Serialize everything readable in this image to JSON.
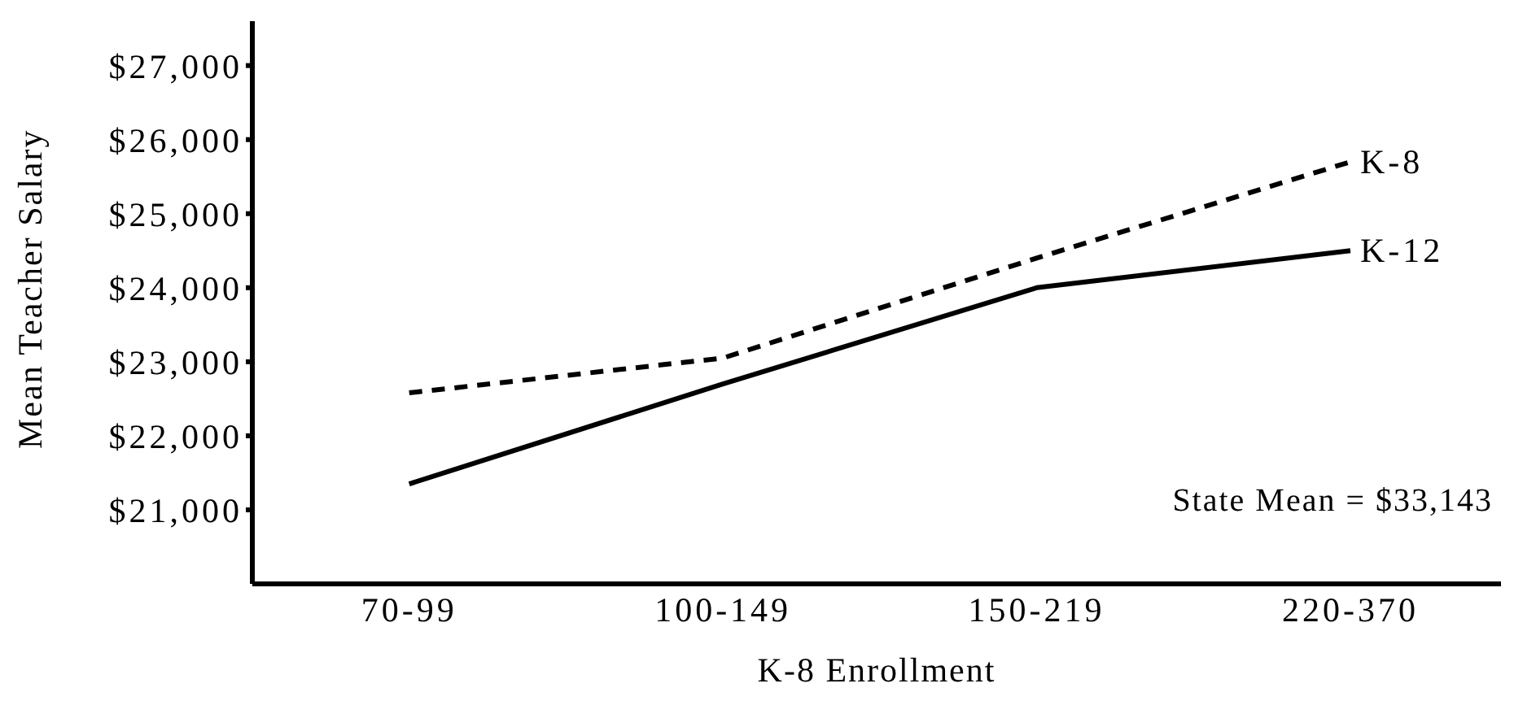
{
  "chart_data": {
    "type": "line",
    "xlabel": "K-8  Enrollment",
    "ylabel": "Mean  Teacher  Salary",
    "categories": [
      "70-99",
      "100-149",
      "150-219",
      "220-370"
    ],
    "series": [
      {
        "name": "K-8",
        "color": "#000000",
        "line_style": "dashed",
        "values": [
          22580,
          23050,
          24400,
          25700
        ]
      },
      {
        "name": "K-12",
        "color": "#000000",
        "line_style": "solid",
        "values": [
          21350,
          22700,
          24000,
          24500
        ]
      }
    ],
    "ylim": [
      20000,
      27600
    ],
    "yticks": [
      {
        "value": 21000,
        "label": "$21,000"
      },
      {
        "value": 22000,
        "label": "$22,000"
      },
      {
        "value": 23000,
        "label": "$23,000"
      },
      {
        "value": 24000,
        "label": "$24,000"
      },
      {
        "value": 25000,
        "label": "$25,000"
      },
      {
        "value": 26000,
        "label": "$26,000"
      },
      {
        "value": 27000,
        "label": "$27,000"
      }
    ],
    "annotations": [
      "State Mean = $33,143"
    ],
    "grid": false,
    "legend": false,
    "marker": "none"
  }
}
